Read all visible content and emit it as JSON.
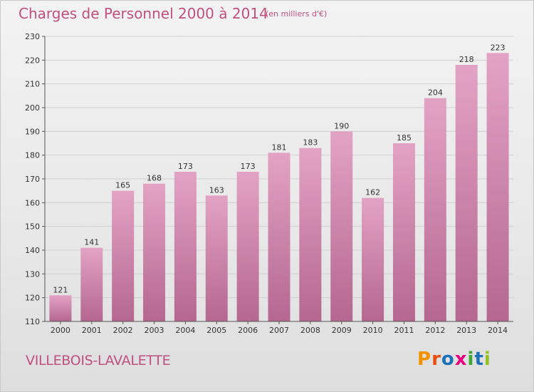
{
  "header": {
    "title": "Charges de Personnel 2000 à 2014",
    "subtitle": "(en milliers d'€)"
  },
  "footer": {
    "place": "VILLEBOIS-LAVALETTE",
    "brand": "Proxiti",
    "brand_colors": [
      "#f39200",
      "#e84e0f",
      "#1d71b8",
      "#e6007e",
      "#3aaa35",
      "#1d71b8",
      "#95c11f"
    ]
  },
  "colors": {
    "bar_top": "#e3a3c5",
    "bar_bottom": "#b5678f",
    "title": "#c0507c"
  },
  "chart_data": {
    "type": "bar",
    "categories": [
      "2000",
      "2001",
      "2002",
      "2003",
      "2004",
      "2005",
      "2006",
      "2007",
      "2008",
      "2009",
      "2010",
      "2011",
      "2012",
      "2013",
      "2014"
    ],
    "values": [
      121,
      141,
      165,
      168,
      173,
      163,
      173,
      181,
      183,
      190,
      162,
      185,
      204,
      218,
      223
    ],
    "ylim": [
      110,
      230
    ],
    "yticks": [
      110,
      120,
      130,
      140,
      150,
      160,
      170,
      180,
      190,
      200,
      210,
      220,
      230
    ],
    "grid": true
  }
}
